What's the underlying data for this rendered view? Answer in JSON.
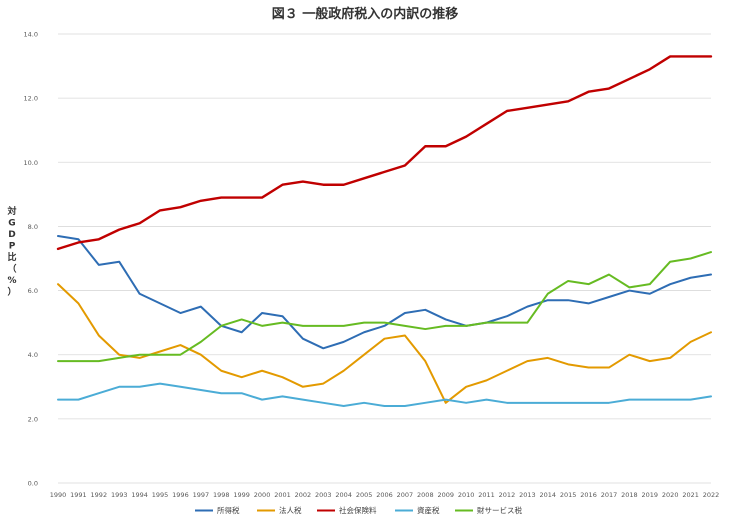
{
  "chart_data": {
    "type": "line",
    "title": "図３ 一般政府税入の内訳の推移",
    "ylabel": "対GDP比（%）",
    "xlabel": "",
    "ylim": [
      0,
      14
    ],
    "yticks": [
      "0.0",
      "2.0",
      "4.0",
      "6.0",
      "8.0",
      "10.0",
      "12.0",
      "14.0"
    ],
    "grid": true,
    "legend_position": "bottom",
    "x": [
      "1990",
      "1991",
      "1992",
      "1993",
      "1994",
      "1995",
      "1996",
      "1997",
      "1998",
      "1999",
      "2000",
      "2001",
      "2002",
      "2003",
      "2004",
      "2005",
      "2006",
      "2007",
      "2008",
      "2009",
      "2010",
      "2011",
      "2012",
      "2013",
      "2014",
      "2015",
      "2016",
      "2017",
      "2018",
      "2019",
      "2020",
      "2021",
      "2022"
    ],
    "series": [
      {
        "name": "所得税",
        "color": "#2e6db4",
        "values": [
          7.7,
          7.6,
          6.8,
          6.9,
          5.9,
          5.6,
          5.3,
          5.5,
          4.9,
          4.7,
          5.3,
          5.2,
          4.5,
          4.2,
          4.4,
          4.7,
          4.9,
          5.3,
          5.4,
          5.1,
          4.9,
          5.0,
          5.2,
          5.5,
          5.7,
          5.7,
          5.6,
          5.8,
          6.0,
          5.9,
          6.2,
          6.4,
          6.5
        ]
      },
      {
        "name": "法人税",
        "color": "#e39a00",
        "values": [
          6.2,
          5.6,
          4.6,
          4.0,
          3.9,
          4.1,
          4.3,
          4.0,
          3.5,
          3.3,
          3.5,
          3.3,
          3.0,
          3.1,
          3.5,
          4.0,
          4.5,
          4.6,
          3.8,
          2.5,
          3.0,
          3.2,
          3.5,
          3.8,
          3.9,
          3.7,
          3.6,
          3.6,
          4.0,
          3.8,
          3.9,
          4.4,
          4.7
        ]
      },
      {
        "name": "社会保険料",
        "color": "#c00000",
        "values": [
          7.3,
          7.5,
          7.6,
          7.9,
          8.1,
          8.5,
          8.6,
          8.8,
          8.9,
          8.9,
          8.9,
          9.3,
          9.4,
          9.3,
          9.3,
          9.5,
          9.7,
          9.9,
          10.5,
          10.5,
          10.8,
          11.2,
          11.6,
          11.7,
          11.8,
          11.9,
          12.2,
          12.3,
          12.6,
          12.9,
          13.3,
          13.3,
          13.3
        ]
      },
      {
        "name": "資産税",
        "color": "#4bacd6",
        "values": [
          2.6,
          2.6,
          2.8,
          3.0,
          3.0,
          3.1,
          3.0,
          2.9,
          2.8,
          2.8,
          2.6,
          2.7,
          2.6,
          2.5,
          2.4,
          2.5,
          2.4,
          2.4,
          2.5,
          2.6,
          2.5,
          2.6,
          2.5,
          2.5,
          2.5,
          2.5,
          2.5,
          2.5,
          2.6,
          2.6,
          2.6,
          2.6,
          2.7
        ]
      },
      {
        "name": "財サービス税",
        "color": "#66bb22",
        "values": [
          3.8,
          3.8,
          3.8,
          3.9,
          4.0,
          4.0,
          4.0,
          4.4,
          4.9,
          5.1,
          4.9,
          5.0,
          4.9,
          4.9,
          4.9,
          5.0,
          5.0,
          4.9,
          4.8,
          4.9,
          4.9,
          5.0,
          5.0,
          5.0,
          5.9,
          6.3,
          6.2,
          6.5,
          6.1,
          6.2,
          6.9,
          7.0,
          7.2
        ]
      }
    ]
  }
}
